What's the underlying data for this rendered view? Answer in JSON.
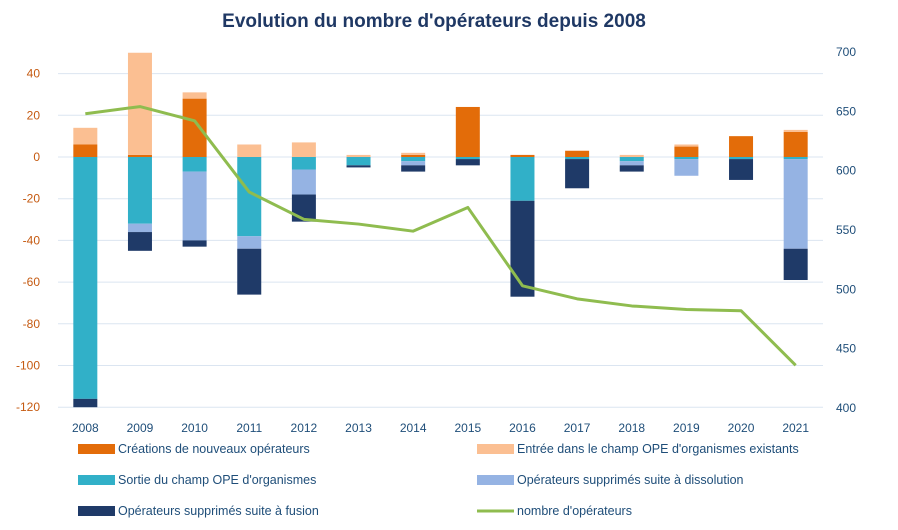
{
  "colors": {
    "title": "#1f3864",
    "left_axis": "#c55a11",
    "right_axis": "#1f4e79",
    "x_axis": "#1f4e79",
    "legend_text": "#1f4e79",
    "grid": "#dbe5f1"
  },
  "chart_data": {
    "type": "bar",
    "title": "Evolution du nombre d'opérateurs depuis 2008",
    "categories": [
      "2008",
      "2009",
      "2010",
      "2011",
      "2012",
      "2013",
      "2014",
      "2015",
      "2016",
      "2017",
      "2018",
      "2019",
      "2020",
      "2021"
    ],
    "ylim": [
      -120,
      40
    ],
    "yticks": [
      "40",
      "20",
      "0",
      "-20",
      "-40",
      "-60",
      "-80",
      "-100",
      "-120"
    ],
    "ytick_values": [
      40,
      20,
      0,
      -20,
      -40,
      -60,
      -80,
      -100,
      -120
    ],
    "y2lim": [
      400,
      700
    ],
    "y2ticks": [
      "700",
      "650",
      "600",
      "550",
      "500",
      "450",
      "400"
    ],
    "y2tick_values": [
      700,
      650,
      600,
      550,
      500,
      450,
      400
    ],
    "grid": true,
    "legend_position": "bottom",
    "series": [
      {
        "name": "Créations de nouveaux opérateurs",
        "kind": "bar",
        "color": "#e36c09",
        "values": [
          6,
          1,
          28,
          0,
          0,
          0,
          1,
          24,
          1,
          3,
          0,
          5,
          10,
          12
        ]
      },
      {
        "name": "Entrée dans le champ OPE d'organismes existants",
        "kind": "bar",
        "color": "#fbbf92",
        "values": [
          8,
          49,
          3,
          6,
          7,
          1,
          1,
          0,
          0,
          0,
          1,
          1,
          0,
          1
        ]
      },
      {
        "name": "Sortie du champ OPE d'organismes",
        "kind": "bar",
        "color": "#31b0c8",
        "values": [
          -116,
          -32,
          -7,
          -38,
          -6,
          -4,
          -2,
          -1,
          -21,
          -1,
          -2,
          -1,
          -1,
          -1
        ]
      },
      {
        "name": "Opérateurs supprimés suite à dissolution",
        "kind": "bar",
        "color": "#95b3e3",
        "values": [
          0,
          -4,
          -33,
          -6,
          -12,
          0,
          -2,
          0,
          0,
          0,
          -2,
          -8,
          0,
          -43
        ]
      },
      {
        "name": "Opérateurs supprimés suite à fusion",
        "kind": "bar",
        "color": "#1f3a68",
        "values": [
          -4,
          -9,
          -3,
          -22,
          -13,
          -1,
          -3,
          -3,
          -46,
          -14,
          -3,
          0,
          -10,
          -15
        ]
      },
      {
        "name": "nombre d'opérateurs",
        "kind": "line",
        "axis": "right",
        "color": "#8fbc4f",
        "values": [
          648,
          654,
          642,
          582,
          559,
          555,
          549,
          569,
          503,
          492,
          486,
          483,
          482,
          436
        ]
      }
    ]
  }
}
